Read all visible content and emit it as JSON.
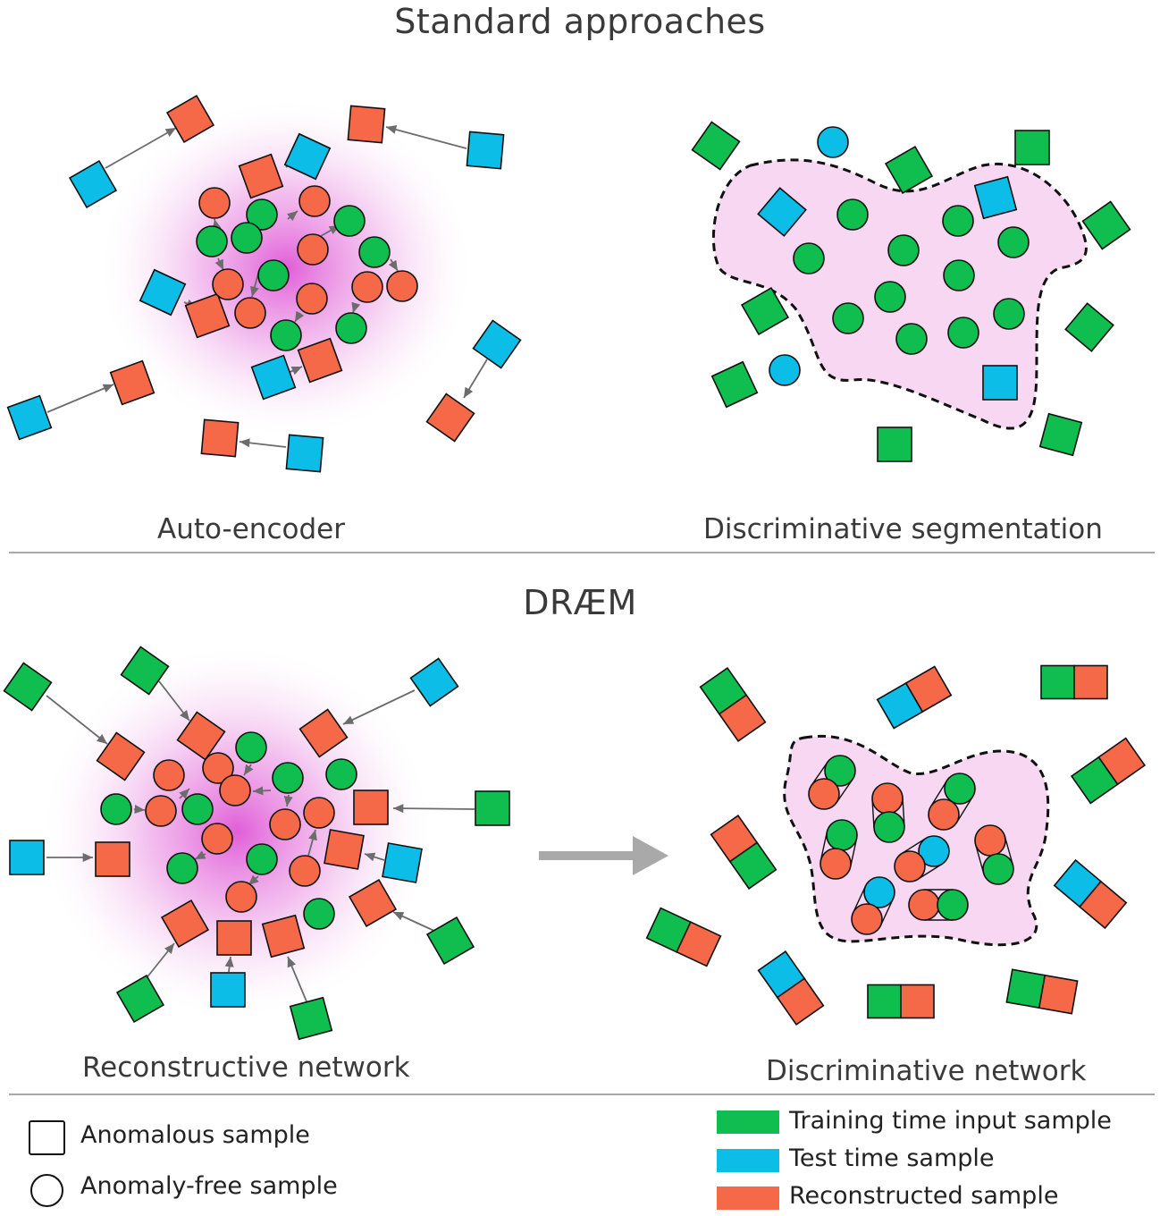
{
  "header": {
    "title": "Standard approaches"
  },
  "panels": {
    "autoencoder": "Auto-encoder",
    "discriminative_segmentation": "Discriminative segmentation"
  },
  "draem": {
    "title": "DRÆM",
    "reconstructive": "Reconstructive network",
    "discriminative": "Discriminative network"
  },
  "legend": {
    "anomalous": "Anomalous sample",
    "anomaly_free": "Anomaly-free sample",
    "training": "Training time input sample",
    "test": "Test time sample",
    "reconstructed": "Reconstructed sample"
  },
  "colors": {
    "training": "#0fbe4e",
    "test": "#0cbde8",
    "reconstructed": "#f56949",
    "region": "#f8d7f3",
    "glow": "#e15ed9"
  }
}
